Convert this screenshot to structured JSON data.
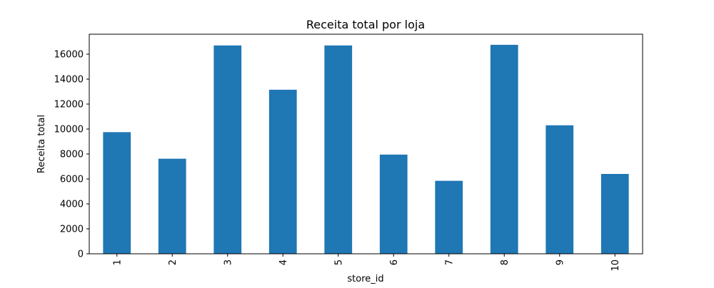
{
  "chart_data": {
    "type": "bar",
    "title": "Receita total por loja",
    "xlabel": "store_id",
    "ylabel": "Receita total",
    "categories": [
      "1",
      "2",
      "3",
      "4",
      "5",
      "6",
      "7",
      "8",
      "9",
      "10"
    ],
    "values": [
      9750,
      7620,
      16700,
      13150,
      16700,
      7950,
      5850,
      16750,
      10300,
      6400
    ],
    "ylim": [
      0,
      17600
    ],
    "yticks": [
      0,
      2000,
      4000,
      6000,
      8000,
      10000,
      12000,
      14000,
      16000
    ],
    "grid": false,
    "legend": "none",
    "bar_color": "#1f77b4"
  }
}
